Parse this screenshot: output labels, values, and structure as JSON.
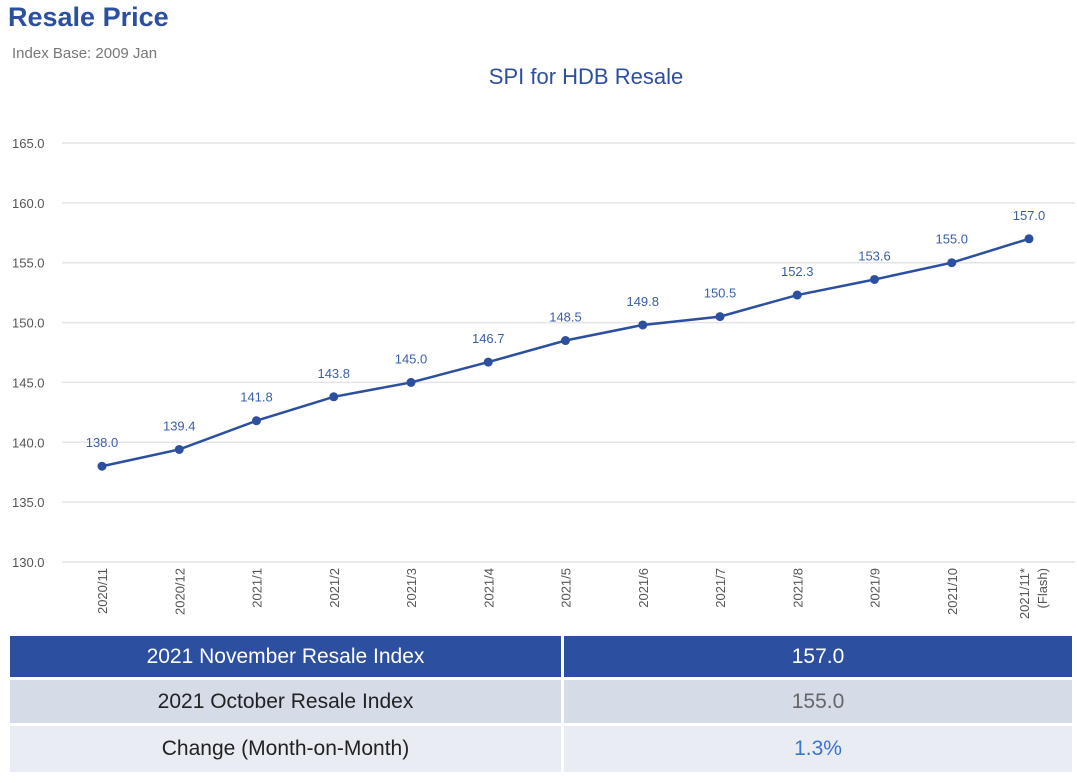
{
  "header": {
    "title": "Resale Price",
    "subtitle": "Index Base: 2009 Jan"
  },
  "chart_data": {
    "type": "line",
    "title": "SPI for HDB Resale",
    "categories": [
      "2020/11",
      "2020/12",
      "2021/1",
      "2021/2",
      "2021/3",
      "2021/4",
      "2021/5",
      "2021/6",
      "2021/7",
      "2021/8",
      "2021/9",
      "2021/10",
      "2021/11*"
    ],
    "category_notes": [
      "",
      "",
      "",
      "",
      "",
      "",
      "",
      "",
      "",
      "",
      "",
      "",
      "(Flash)"
    ],
    "values": [
      138.0,
      139.4,
      141.8,
      143.8,
      145.0,
      146.7,
      148.5,
      149.8,
      150.5,
      152.3,
      153.6,
      155.0,
      157.0
    ],
    "ylim": [
      130,
      165
    ],
    "yticks": [
      "130.0",
      "135.0",
      "140.0",
      "145.0",
      "150.0",
      "155.0",
      "160.0",
      "165.0"
    ],
    "grid": true,
    "data_labels": true,
    "line_color": "#2c4fa0",
    "label_color": "#3a5fa8"
  },
  "summary": {
    "rows": [
      {
        "label": "2021 November Resale Index",
        "value": "157.0"
      },
      {
        "label": "2021 October Resale Index",
        "value": "155.0"
      },
      {
        "label": "Change (Month-on-Month)",
        "value": "1.3%"
      }
    ]
  }
}
